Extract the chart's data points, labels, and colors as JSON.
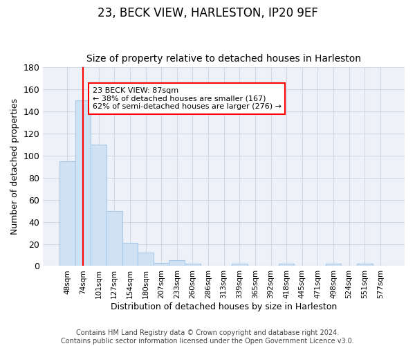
{
  "title": "23, BECK VIEW, HARLESTON, IP20 9EF",
  "subtitle": "Size of property relative to detached houses in Harleston",
  "xlabel": "Distribution of detached houses by size in Harleston",
  "ylabel": "Number of detached properties",
  "bar_labels": [
    "48sqm",
    "74sqm",
    "101sqm",
    "127sqm",
    "154sqm",
    "180sqm",
    "207sqm",
    "233sqm",
    "260sqm",
    "286sqm",
    "313sqm",
    "339sqm",
    "365sqm",
    "392sqm",
    "418sqm",
    "445sqm",
    "471sqm",
    "498sqm",
    "524sqm",
    "551sqm",
    "577sqm"
  ],
  "bar_values": [
    95,
    150,
    110,
    50,
    21,
    12,
    3,
    5,
    2,
    0,
    0,
    2,
    0,
    0,
    2,
    0,
    0,
    2,
    0,
    2,
    0
  ],
  "bar_color": "#cfe2f3",
  "bar_edge_color": "#a8c8e8",
  "grid_color": "#d0d8e8",
  "bg_color": "#eef2f8",
  "red_line_x": 1,
  "annotation_text": "23 BECK VIEW: 87sqm\n← 38% of detached houses are smaller (167)\n62% of semi-detached houses are larger (276) →",
  "annotation_box_color": "white",
  "annotation_edge_color": "red",
  "ylim": [
    0,
    180
  ],
  "yticks": [
    0,
    20,
    40,
    60,
    80,
    100,
    120,
    140,
    160,
    180
  ],
  "footer": "Contains HM Land Registry data © Crown copyright and database right 2024.\nContains public sector information licensed under the Open Government Licence v3.0.",
  "title_fontsize": 12,
  "subtitle_fontsize": 10,
  "xlabel_fontsize": 9,
  "ylabel_fontsize": 9,
  "footer_fontsize": 7
}
